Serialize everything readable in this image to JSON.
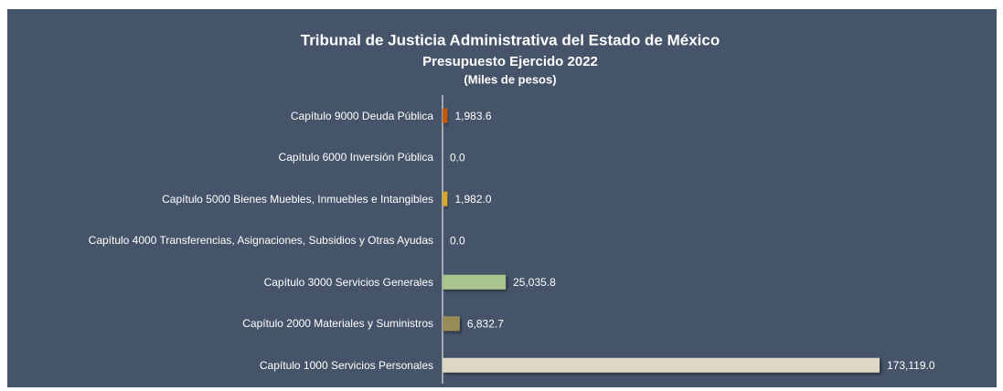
{
  "chart_data": {
    "type": "barh",
    "title": "Tribunal de Justicia Administrativa del Estado de México",
    "subtitle": "Presupuesto Ejercido 2022",
    "unit_label": "(Miles de pesos)",
    "categories": [
      "Capítulo 9000 Deuda Pública",
      "Capítulo 6000 Inversión Pública",
      "Capítulo 5000 Bienes Muebles, Inmuebles e Intangibles",
      "Capítulo 4000 Transferencias, Asignaciones, Subsidios y Otras Ayudas",
      "Capítulo 3000 Servicios Generales",
      "Capítulo 2000 Materiales y Suministros",
      "Capítulo 1000 Servicios Personales"
    ],
    "values": [
      1983.6,
      0.0,
      1982.0,
      0.0,
      25035.8,
      6832.7,
      173119.0
    ],
    "value_labels": [
      "1,983.6",
      "0.0",
      "1,982.0",
      "0.0",
      "25,035.8",
      "6,832.7",
      "173,119.0"
    ],
    "colors": [
      "#c55a11",
      "#7f7f7f",
      "#d4a62a",
      "#7f7f7f",
      "#a9c48f",
      "#9a8c58",
      "#ddd8c3"
    ]
  }
}
